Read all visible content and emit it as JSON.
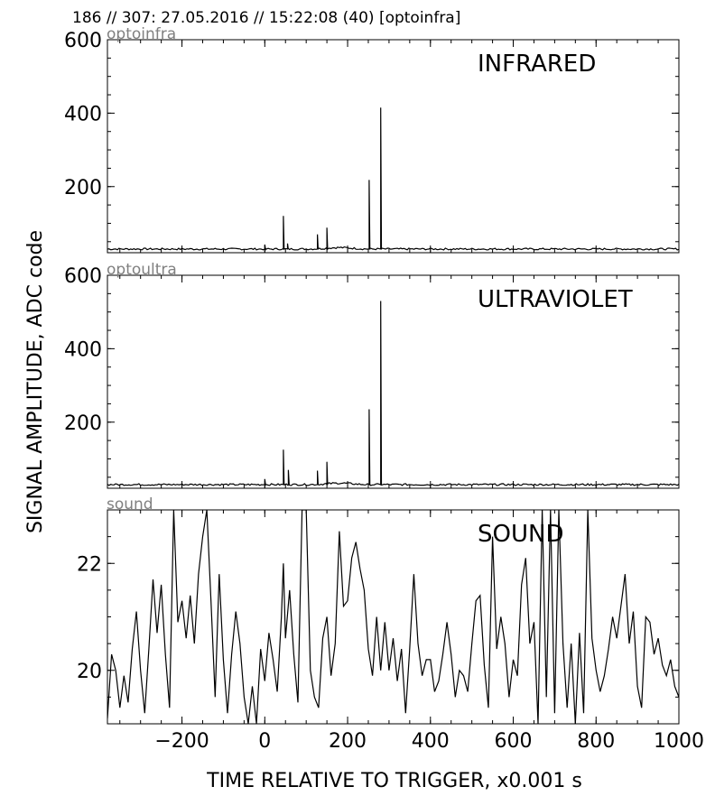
{
  "header": {
    "title": "186 // 307:   27.05.2016 // 15:22:08 (40)  [optoinfra]"
  },
  "axes": {
    "ylabel": "SIGNAL AMPLITUDE,  ADC code",
    "xlabel": "TIME RELATIVE TO TRIGGER,   x0.001 s",
    "xticks": [
      -200,
      0,
      200,
      400,
      600,
      800,
      1000
    ],
    "xticklabels": [
      "−200",
      "0",
      "200",
      "400",
      "600",
      "800",
      "1000"
    ]
  },
  "chart_data": [
    {
      "type": "line",
      "channel_label": "optoinfra",
      "panel_title": "INFRARED",
      "xlim": [
        -380,
        1000
      ],
      "ylim": [
        20,
        600
      ],
      "yticks": [
        200,
        400,
        600
      ],
      "yticklabels": [
        "200",
        "400",
        "600"
      ],
      "baseline": 30,
      "spikes": [
        {
          "x": 0,
          "y": 42
        },
        {
          "x": 45,
          "y": 120
        },
        {
          "x": 55,
          "y": 45
        },
        {
          "x": 127,
          "y": 70
        },
        {
          "x": 150,
          "y": 88
        },
        {
          "x": 252,
          "y": 218
        },
        {
          "x": 280,
          "y": 415
        }
      ]
    },
    {
      "type": "line",
      "channel_label": "optoultra",
      "panel_title": "ULTRAVIOLET",
      "xlim": [
        -380,
        1000
      ],
      "ylim": [
        20,
        600
      ],
      "yticks": [
        200,
        400,
        600
      ],
      "yticklabels": [
        "200",
        "400",
        "600"
      ],
      "baseline": 30,
      "spikes": [
        {
          "x": 0,
          "y": 45
        },
        {
          "x": 45,
          "y": 125
        },
        {
          "x": 57,
          "y": 70
        },
        {
          "x": 127,
          "y": 68
        },
        {
          "x": 150,
          "y": 92
        },
        {
          "x": 252,
          "y": 235
        },
        {
          "x": 280,
          "y": 530
        }
      ]
    },
    {
      "type": "line",
      "channel_label": "sound",
      "panel_title": "SOUND",
      "xlim": [
        -380,
        1000
      ],
      "ylim": [
        19,
        23
      ],
      "yticks": [
        20,
        22
      ],
      "yticklabels": [
        "20",
        "22"
      ],
      "points": [
        [
          -380,
          19.1
        ],
        [
          -370,
          20.3
        ],
        [
          -360,
          20.0
        ],
        [
          -350,
          19.3
        ],
        [
          -340,
          19.9
        ],
        [
          -330,
          19.4
        ],
        [
          -320,
          20.4
        ],
        [
          -310,
          21.1
        ],
        [
          -300,
          20.0
        ],
        [
          -290,
          19.2
        ],
        [
          -280,
          20.4
        ],
        [
          -270,
          21.7
        ],
        [
          -260,
          20.7
        ],
        [
          -250,
          21.6
        ],
        [
          -240,
          20.3
        ],
        [
          -230,
          19.3
        ],
        [
          -220,
          23.0
        ],
        [
          -210,
          20.9
        ],
        [
          -200,
          21.3
        ],
        [
          -190,
          20.6
        ],
        [
          -180,
          21.4
        ],
        [
          -170,
          20.5
        ],
        [
          -160,
          21.8
        ],
        [
          -150,
          22.5
        ],
        [
          -140,
          23.0
        ],
        [
          -130,
          21.3
        ],
        [
          -120,
          19.5
        ],
        [
          -110,
          21.8
        ],
        [
          -100,
          20.2
        ],
        [
          -90,
          19.2
        ],
        [
          -80,
          20.3
        ],
        [
          -70,
          21.1
        ],
        [
          -60,
          20.5
        ],
        [
          -50,
          19.5
        ],
        [
          -40,
          19.0
        ],
        [
          -30,
          19.7
        ],
        [
          -20,
          19.0
        ],
        [
          -10,
          20.4
        ],
        [
          0,
          19.8
        ],
        [
          10,
          20.7
        ],
        [
          20,
          20.2
        ],
        [
          30,
          19.6
        ],
        [
          40,
          21.0
        ],
        [
          45,
          22.0
        ],
        [
          50,
          20.6
        ],
        [
          60,
          21.5
        ],
        [
          70,
          20.3
        ],
        [
          80,
          19.4
        ],
        [
          90,
          23.0
        ],
        [
          100,
          23.0
        ],
        [
          110,
          20.0
        ],
        [
          120,
          19.5
        ],
        [
          130,
          19.3
        ],
        [
          140,
          20.6
        ],
        [
          150,
          21.0
        ],
        [
          160,
          19.9
        ],
        [
          170,
          20.5
        ],
        [
          180,
          22.6
        ],
        [
          190,
          21.2
        ],
        [
          200,
          21.3
        ],
        [
          210,
          22.1
        ],
        [
          220,
          22.4
        ],
        [
          230,
          21.9
        ],
        [
          240,
          21.5
        ],
        [
          250,
          20.4
        ],
        [
          260,
          19.9
        ],
        [
          270,
          21.0
        ],
        [
          280,
          20.0
        ],
        [
          290,
          20.9
        ],
        [
          300,
          20.0
        ],
        [
          310,
          20.6
        ],
        [
          320,
          19.8
        ],
        [
          330,
          20.4
        ],
        [
          340,
          19.2
        ],
        [
          350,
          20.4
        ],
        [
          360,
          21.8
        ],
        [
          370,
          20.5
        ],
        [
          380,
          19.9
        ],
        [
          390,
          20.2
        ],
        [
          400,
          20.2
        ],
        [
          410,
          19.6
        ],
        [
          420,
          19.8
        ],
        [
          430,
          20.3
        ],
        [
          440,
          20.9
        ],
        [
          450,
          20.3
        ],
        [
          460,
          19.5
        ],
        [
          470,
          20.0
        ],
        [
          480,
          19.9
        ],
        [
          490,
          19.6
        ],
        [
          500,
          20.5
        ],
        [
          510,
          21.3
        ],
        [
          520,
          21.4
        ],
        [
          530,
          20.1
        ],
        [
          540,
          19.3
        ],
        [
          550,
          22.5
        ],
        [
          560,
          20.4
        ],
        [
          570,
          21.0
        ],
        [
          580,
          20.5
        ],
        [
          590,
          19.5
        ],
        [
          600,
          20.2
        ],
        [
          610,
          19.9
        ],
        [
          620,
          21.6
        ],
        [
          630,
          22.1
        ],
        [
          640,
          20.5
        ],
        [
          650,
          20.9
        ],
        [
          660,
          19.0
        ],
        [
          670,
          23.0
        ],
        [
          680,
          19.5
        ],
        [
          690,
          23.0
        ],
        [
          700,
          19.2
        ],
        [
          710,
          23.0
        ],
        [
          720,
          20.5
        ],
        [
          730,
          19.3
        ],
        [
          740,
          20.5
        ],
        [
          750,
          19.0
        ],
        [
          760,
          20.7
        ],
        [
          770,
          19.2
        ],
        [
          780,
          23.0
        ],
        [
          790,
          20.6
        ],
        [
          800,
          20.0
        ],
        [
          810,
          19.6
        ],
        [
          820,
          19.9
        ],
        [
          830,
          20.4
        ],
        [
          840,
          21.0
        ],
        [
          850,
          20.6
        ],
        [
          860,
          21.2
        ],
        [
          870,
          21.8
        ],
        [
          880,
          20.5
        ],
        [
          890,
          21.1
        ],
        [
          900,
          19.7
        ],
        [
          910,
          19.3
        ],
        [
          920,
          21.0
        ],
        [
          930,
          20.9
        ],
        [
          940,
          20.3
        ],
        [
          950,
          20.6
        ],
        [
          960,
          20.1
        ],
        [
          970,
          19.9
        ],
        [
          980,
          20.2
        ],
        [
          990,
          19.7
        ],
        [
          1000,
          19.5
        ]
      ]
    }
  ]
}
